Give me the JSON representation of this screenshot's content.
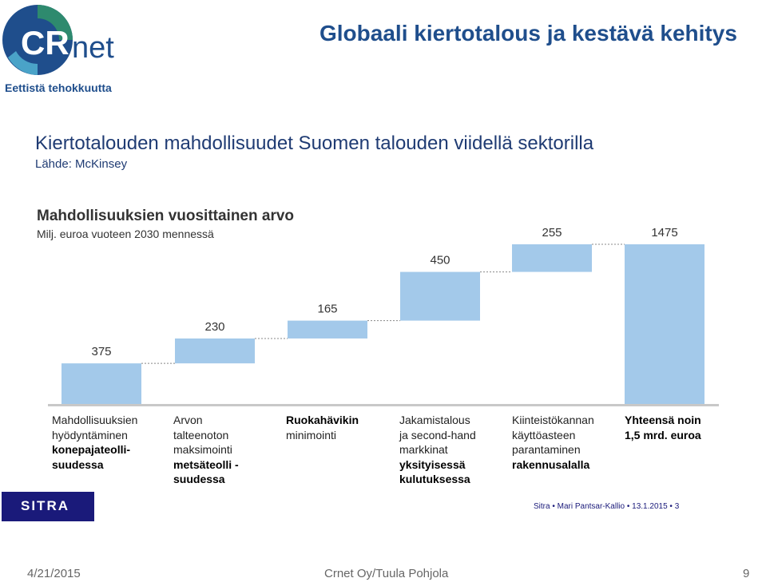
{
  "header": {
    "logo_text": "CRnet",
    "tagline": "Eettistä tehokkuutta",
    "title": "Globaali kiertotalous ja kestävä kehitys"
  },
  "chart_data": {
    "type": "bar",
    "subtype": "waterfall",
    "title": "Kiertotalouden mahdollisuudet Suomen talouden viidellä sektorilla",
    "source": "Lähde: McKinsey",
    "subtitle": "Mahdollisuuksien vuosittainen arvo",
    "ylabel": "Milj. euroa vuoteen 2030 mennessä",
    "ylim": [
      0,
      1475
    ],
    "grid": false,
    "bar_color": "#a3c9ea",
    "categories": [
      {
        "lines": [
          {
            "text": "Mahdollisuuksien",
            "bold": false
          },
          {
            "text": "hyödyntäminen",
            "bold": false
          },
          {
            "text": "konepajateolli-",
            "bold": true
          },
          {
            "text": "suudessa",
            "bold": true
          }
        ]
      },
      {
        "lines": [
          {
            "text": "Arvon",
            "bold": false
          },
          {
            "text": "talteenoton",
            "bold": false
          },
          {
            "text": "maksimointi",
            "bold": false
          },
          {
            "text": "metsäteolli -",
            "bold": true
          },
          {
            "text": "suudessa",
            "bold": true
          }
        ]
      },
      {
        "lines": [
          {
            "text": "Ruokahävikin",
            "bold": true
          },
          {
            "text": "minimointi",
            "bold": false
          }
        ]
      },
      {
        "lines": [
          {
            "text": "Jakamistalous",
            "bold": false
          },
          {
            "text": "ja second-hand",
            "bold": false
          },
          {
            "text": "markkinat",
            "bold": false
          },
          {
            "text": "yksityisessä",
            "bold": true
          },
          {
            "text": "kulutuksessa",
            "bold": true
          }
        ]
      },
      {
        "lines": [
          {
            "text": "Kiinteistökannan",
            "bold": false
          },
          {
            "text": "käyttöasteen",
            "bold": false
          },
          {
            "text": "parantaminen",
            "bold": false
          },
          {
            "text": "rakennusalalla",
            "bold": true
          }
        ]
      },
      {
        "lines": [
          {
            "text": "Yhteensä noin",
            "bold": true
          },
          {
            "text": "1,5 mrd. euroa",
            "bold": true
          }
        ]
      }
    ],
    "values": [
      375,
      230,
      165,
      450,
      255,
      1475
    ],
    "value_labels": [
      "375",
      "230",
      "165",
      "450",
      "255",
      "1475"
    ]
  },
  "bottom": {
    "sitra_logo": "SITRA",
    "source_line": "Sitra  •  Mari Pantsar-Kallio  •  13.1.2015  •  3"
  },
  "footer": {
    "date": "4/21/2015",
    "center": "Crnet Oy/Tuula Pohjola",
    "page": "9"
  }
}
